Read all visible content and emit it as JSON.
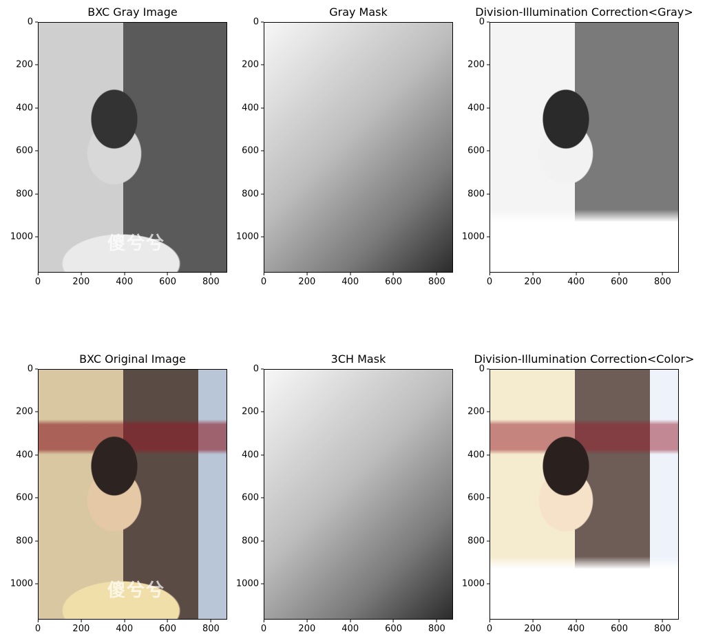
{
  "chart_data": [
    {
      "type": "image",
      "title": "BXC Gray Image",
      "xticks": [
        "0",
        "200",
        "400",
        "600",
        "800"
      ],
      "yticks": [
        "0",
        "200",
        "400",
        "600",
        "800",
        "1000"
      ],
      "xlim": [
        0,
        875
      ],
      "ylim": [
        1165,
        0
      ],
      "colormap": "gray"
    },
    {
      "type": "image",
      "title": "Gray Mask",
      "xticks": [
        "0",
        "200",
        "400",
        "600",
        "800"
      ],
      "yticks": [
        "0",
        "200",
        "400",
        "600",
        "800",
        "1000"
      ],
      "xlim": [
        0,
        875
      ],
      "ylim": [
        1165,
        0
      ],
      "colormap": "gray"
    },
    {
      "type": "image",
      "title": "Division-Illumination Correction<Gray>",
      "xticks": [
        "0",
        "200",
        "400",
        "600",
        "800"
      ],
      "yticks": [
        "0",
        "200",
        "400",
        "600",
        "800",
        "1000"
      ],
      "xlim": [
        0,
        875
      ],
      "ylim": [
        1165,
        0
      ],
      "colormap": "gray"
    },
    {
      "type": "image",
      "title": "BXC Original Image",
      "xticks": [
        "0",
        "200",
        "400",
        "600",
        "800"
      ],
      "yticks": [
        "0",
        "200",
        "400",
        "600",
        "800",
        "1000"
      ],
      "xlim": [
        0,
        875
      ],
      "ylim": [
        1165,
        0
      ],
      "colormap": "rgb"
    },
    {
      "type": "image",
      "title": "3CH Mask",
      "xticks": [
        "0",
        "200",
        "400",
        "600",
        "800"
      ],
      "yticks": [
        "0",
        "200",
        "400",
        "600",
        "800",
        "1000"
      ],
      "xlim": [
        0,
        875
      ],
      "ylim": [
        1165,
        0
      ],
      "colormap": "gray"
    },
    {
      "type": "image",
      "title": "Division-Illumination Correction<Color>",
      "xticks": [
        "0",
        "200",
        "400",
        "600",
        "800"
      ],
      "yticks": [
        "0",
        "200",
        "400",
        "600",
        "800",
        "1000"
      ],
      "xlim": [
        0,
        875
      ],
      "ylim": [
        1165,
        0
      ],
      "colormap": "rgb"
    }
  ],
  "watermark_text": "傻兮兮"
}
